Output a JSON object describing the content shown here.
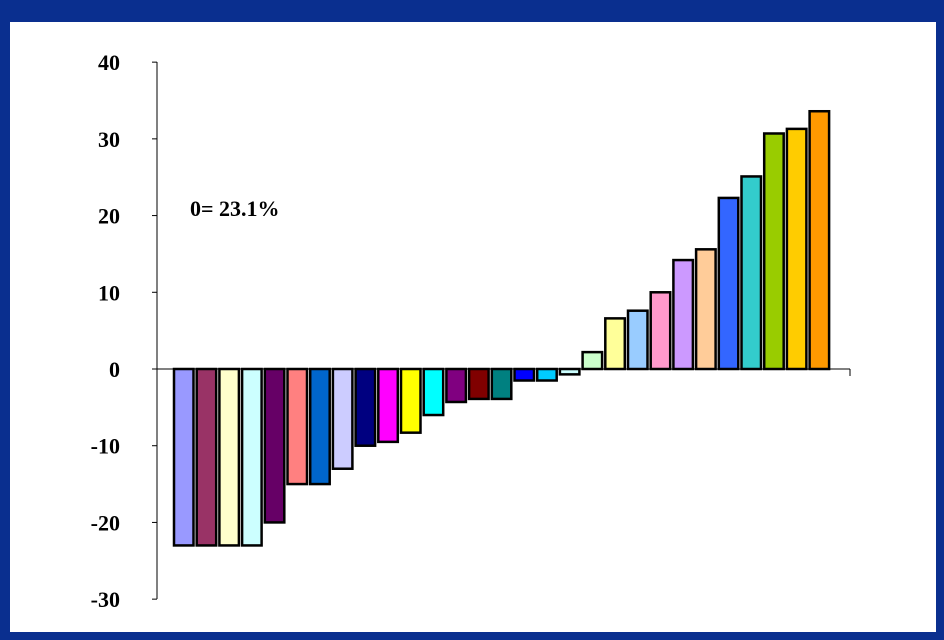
{
  "chart_data": {
    "type": "bar",
    "annotation": "0= 23.1%",
    "yticks": [
      "40",
      "30",
      "20",
      "10",
      "0",
      "-10",
      "-20",
      "-30"
    ],
    "ylim": [
      -30,
      40
    ],
    "grid": false,
    "legend": "none",
    "values": [
      -23,
      -23,
      -23,
      -23,
      -20,
      -15,
      -15,
      -13,
      -10,
      -9.5,
      -8.3,
      -6,
      -4.3,
      -3.9,
      -3.9,
      -1.5,
      -1.5,
      -0.7,
      2.2,
      6.6,
      7.6,
      10,
      14.2,
      15.6,
      22.3,
      25.1,
      30.7,
      31.3,
      33.6
    ],
    "colors": [
      "#9999ff",
      "#993366",
      "#ffffcc",
      "#ccffff",
      "#660066",
      "#ff8080",
      "#0066cc",
      "#ccccff",
      "#000080",
      "#ff00ff",
      "#ffff00",
      "#00ffff",
      "#800080",
      "#800000",
      "#008080",
      "#0000ff",
      "#00ccff",
      "#ccffff",
      "#ccffcc",
      "#ffff99",
      "#99ccff",
      "#ff99cc",
      "#cc99ff",
      "#ffcc99",
      "#3366ff",
      "#33cccc",
      "#99cc00",
      "#ffcc00",
      "#ff9900"
    ]
  }
}
